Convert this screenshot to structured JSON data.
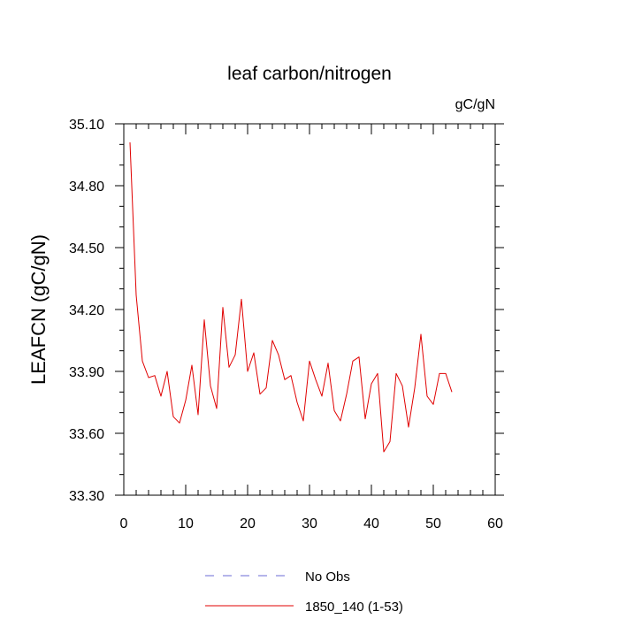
{
  "chart_data": {
    "type": "line",
    "title": "leaf carbon/nitrogen",
    "units_label": "gC/gN",
    "ylabel": "LEAFCN  (gC/gN)",
    "xlabel": "",
    "xlim": [
      0,
      60
    ],
    "ylim": [
      33.3,
      35.1
    ],
    "xticks": [
      0,
      10,
      20,
      30,
      40,
      50,
      60
    ],
    "xtick_labels": [
      "0",
      "10",
      "20",
      "30",
      "40",
      "50",
      "60"
    ],
    "yticks": [
      33.3,
      33.6,
      33.9,
      34.2,
      34.5,
      34.8,
      35.1
    ],
    "ytick_labels": [
      "33.30",
      "33.60",
      "33.90",
      "34.20",
      "34.50",
      "34.80",
      "35.10"
    ],
    "grid": false,
    "legend_position": "bottom-center",
    "legend": [
      {
        "label": "No Obs",
        "color": "#6b6bd6",
        "style": "dashed"
      },
      {
        "label": "1850_140 (1-53)",
        "color": "#e00000",
        "style": "solid"
      }
    ],
    "series": [
      {
        "name": "1850_140 (1-53)",
        "color": "#e00000",
        "x": [
          1,
          2,
          3,
          4,
          5,
          6,
          7,
          8,
          9,
          10,
          11,
          12,
          13,
          14,
          15,
          16,
          17,
          18,
          19,
          20,
          21,
          22,
          23,
          24,
          25,
          26,
          27,
          28,
          29,
          30,
          31,
          32,
          33,
          34,
          35,
          36,
          37,
          38,
          39,
          40,
          41,
          42,
          43,
          44,
          45,
          46,
          47,
          48,
          49,
          50,
          51,
          52,
          53
        ],
        "y": [
          35.01,
          34.27,
          33.95,
          33.87,
          33.88,
          33.78,
          33.9,
          33.68,
          33.65,
          33.76,
          33.93,
          33.69,
          34.15,
          33.83,
          33.72,
          34.21,
          33.92,
          33.98,
          34.25,
          33.9,
          33.99,
          33.79,
          33.82,
          34.05,
          33.98,
          33.86,
          33.88,
          33.75,
          33.66,
          33.95,
          33.86,
          33.78,
          33.94,
          33.71,
          33.66,
          33.79,
          33.95,
          33.97,
          33.67,
          33.84,
          33.89,
          33.51,
          33.56,
          33.89,
          33.83,
          33.63,
          33.82,
          34.08,
          33.78,
          33.74,
          33.89,
          33.89,
          33.8
        ]
      }
    ]
  }
}
